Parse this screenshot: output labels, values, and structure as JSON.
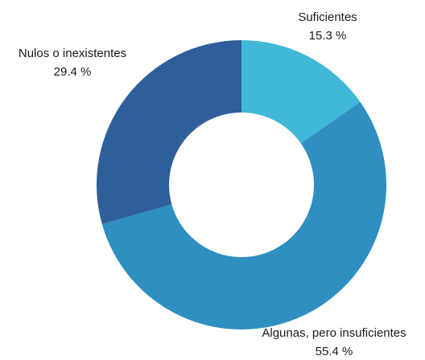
{
  "chart_data": {
    "type": "donut",
    "categories": [
      "Suficientes",
      "Algunas, pero insuficientes",
      "Nulos o inexistentes"
    ],
    "values": [
      15.3,
      55.4,
      29.4
    ],
    "value_labels": [
      "15.3 %",
      "55.4 %",
      "29.4 %"
    ],
    "colors": [
      "#41b8d8",
      "#2e8fc0",
      "#2e5f9a"
    ]
  }
}
